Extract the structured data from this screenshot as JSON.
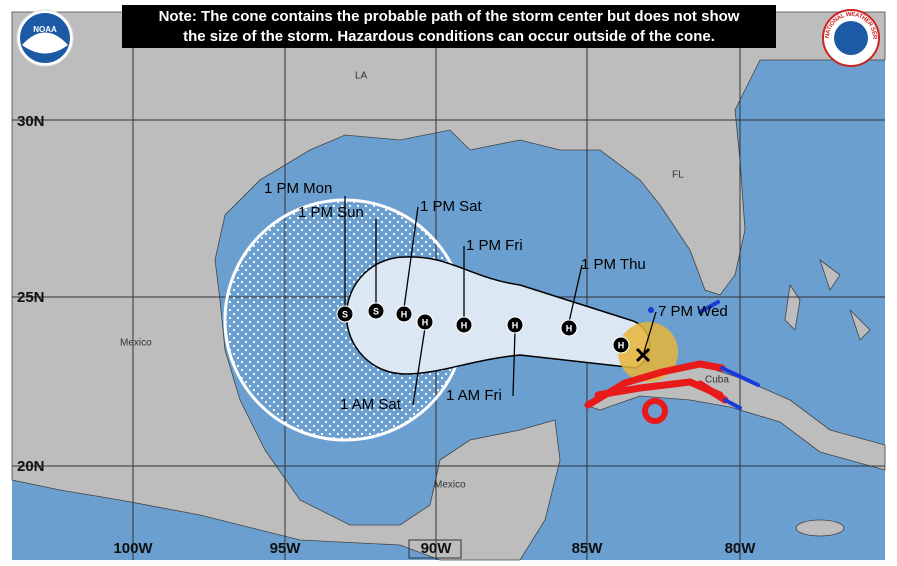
{
  "header": {
    "note_lines": [
      "Note: The cone contains the probable path of the storm center but does not show",
      "the size of the storm. Hazardous conditions can occur outside of the cone."
    ]
  },
  "logos": {
    "left": "NOAA",
    "right": "NATIONAL WEATHER SERVICE"
  },
  "grid_labels": {
    "lat": [
      "30N",
      "25N",
      "20N"
    ],
    "lon": [
      "100W",
      "95W",
      "90W",
      "85W",
      "80W"
    ]
  },
  "places": [
    "LA",
    "FL",
    "Mexico",
    "Mexico",
    "Cuba"
  ],
  "forecast_points": [
    "S",
    "S",
    "H",
    "H",
    "H",
    "H",
    "H",
    "H"
  ],
  "time_labels": [
    "1 PM Mon",
    "1 PM Sun",
    "1 PM Sat",
    "1 PM Fri",
    "1 PM Thu",
    "7 PM Wed",
    "1 AM Sat",
    "1 AM Fri"
  ]
}
